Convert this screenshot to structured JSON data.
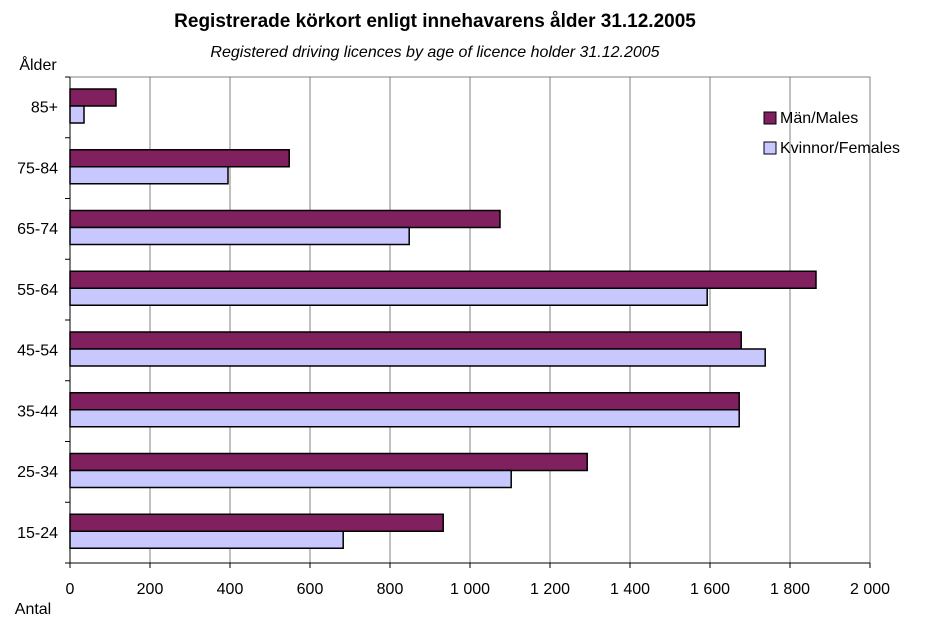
{
  "chart_data": {
    "type": "bar",
    "orientation": "horizontal",
    "title": "Registrerade körkort enligt innehavarens ålder 31.12.2005",
    "subtitle": "Registered driving licences by age of licence holder 31.12.2005",
    "y_label": "Ålder",
    "x_label": "Antal",
    "categories": [
      "85+",
      "75-84",
      "65-74",
      "55-64",
      "45-54",
      "35-44",
      "25-34",
      "15-24"
    ],
    "series": [
      {
        "name": "Män/Males",
        "color": "#80205e",
        "values": [
          115,
          548,
          1075,
          1865,
          1678,
          1673,
          1293,
          933
        ]
      },
      {
        "name": "Kvinnor/Females",
        "color": "#c8c8ff",
        "values": [
          35,
          395,
          848,
          1593,
          1738,
          1673,
          1103,
          683
        ]
      }
    ],
    "xlim": [
      0,
      2000
    ],
    "xticks": [
      0,
      200,
      400,
      600,
      800,
      {
        "value": 1000,
        "label": "1 000"
      },
      {
        "value": 1200,
        "label": "1 200"
      },
      {
        "value": 1400,
        "label": "1 400"
      },
      {
        "value": 1600,
        "label": "1 600"
      },
      {
        "value": 1800,
        "label": "1 800"
      },
      {
        "value": 2000,
        "label": "2 000"
      }
    ],
    "grid": true,
    "legend": "upper right"
  }
}
